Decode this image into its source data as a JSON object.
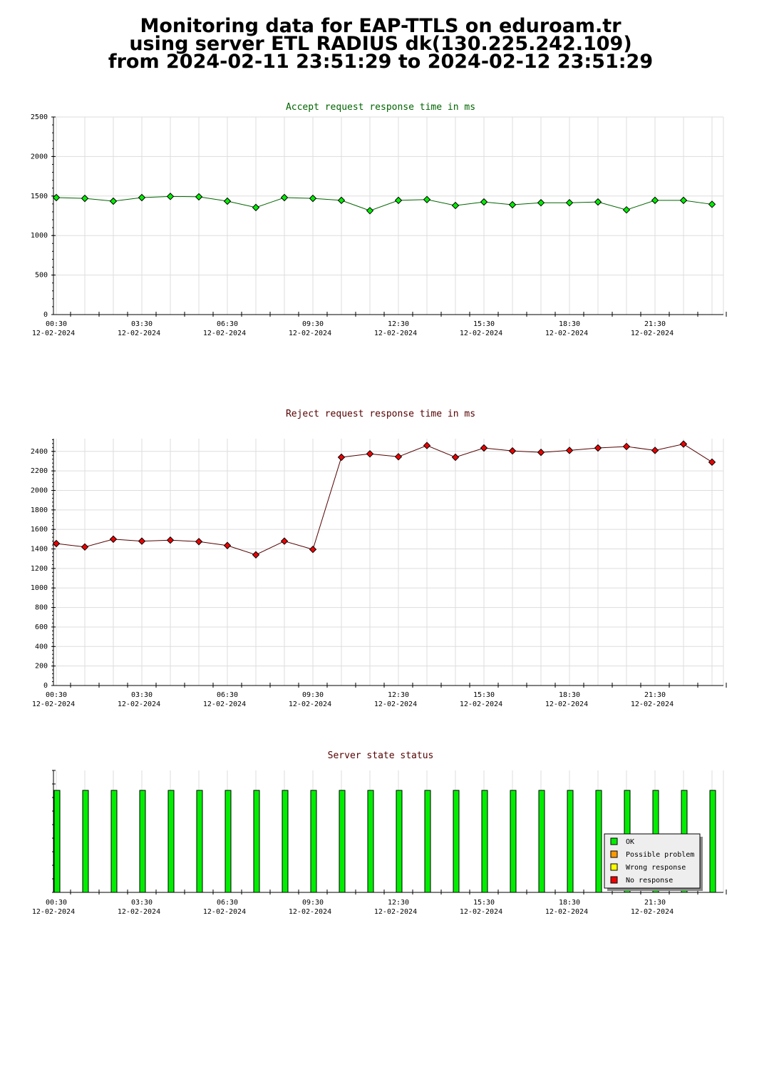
{
  "title_lines": [
    "Monitoring data for EAP-TTLS on eduroam.tr",
    "using server ETL RADIUS dk(130.225.242.109)",
    "from 2024-02-11 23:51:29 to 2024-02-12 23:51:29"
  ],
  "chart_data": [
    {
      "type": "line",
      "title": "Accept request response time in ms",
      "title_color": "#006400",
      "marker_color": "#00ee00",
      "line_color": "#006400",
      "x_tick_labels": [
        "00:30",
        "03:30",
        "06:30",
        "09:30",
        "12:30",
        "15:30",
        "18:30",
        "21:30"
      ],
      "x_tick_date": "12-02-2024",
      "ylim": [
        0,
        2500
      ],
      "yticks": [
        0,
        500,
        1000,
        1500,
        2000,
        2500
      ],
      "grid": true,
      "series": [
        {
          "values": [
            1480,
            1470,
            1435,
            1480,
            1495,
            1490,
            1435,
            1355,
            1480,
            1470,
            1445,
            1315,
            1445,
            1455,
            1380,
            1425,
            1390,
            1415,
            1415,
            1425,
            1325,
            1445,
            1445,
            1395
          ]
        }
      ]
    },
    {
      "type": "line",
      "title": "Reject request response time in ms",
      "title_color": "#550000",
      "marker_color": "#ee0000",
      "line_color": "#550000",
      "x_tick_labels": [
        "00:30",
        "03:30",
        "06:30",
        "09:30",
        "12:30",
        "15:30",
        "18:30",
        "21:30"
      ],
      "x_tick_date": "12-02-2024",
      "ylim": [
        0,
        2530
      ],
      "yticks": [
        0,
        200,
        400,
        600,
        800,
        1000,
        1200,
        1400,
        1600,
        1800,
        2000,
        2200,
        2400
      ],
      "grid": true,
      "series": [
        {
          "values": [
            1455,
            1420,
            1500,
            1480,
            1490,
            1475,
            1435,
            1340,
            1480,
            1395,
            2340,
            2375,
            2345,
            2460,
            2340,
            2435,
            2405,
            2390,
            2410,
            2435,
            2450,
            2410,
            2475,
            2290
          ]
        }
      ]
    },
    {
      "type": "bar",
      "title": "Server state status",
      "title_color": "#550000",
      "x_tick_labels": [
        "00:30",
        "03:30",
        "06:30",
        "09:30",
        "12:30",
        "15:30",
        "18:30",
        "21:30"
      ],
      "x_tick_date": "12-02-2024",
      "values": [
        1,
        1,
        1,
        1,
        1,
        1,
        1,
        1,
        1,
        1,
        1,
        1,
        1,
        1,
        1,
        1,
        1,
        1,
        1,
        1,
        1,
        1,
        1,
        1
      ],
      "legend_placement": "bottom-right",
      "legend": [
        {
          "label": "OK",
          "color": "#00ee00"
        },
        {
          "label": "Possible problem",
          "color": "#ff9900"
        },
        {
          "label": "Wrong response",
          "color": "#ffff00"
        },
        {
          "label": "No response",
          "color": "#ee0000"
        }
      ]
    }
  ]
}
